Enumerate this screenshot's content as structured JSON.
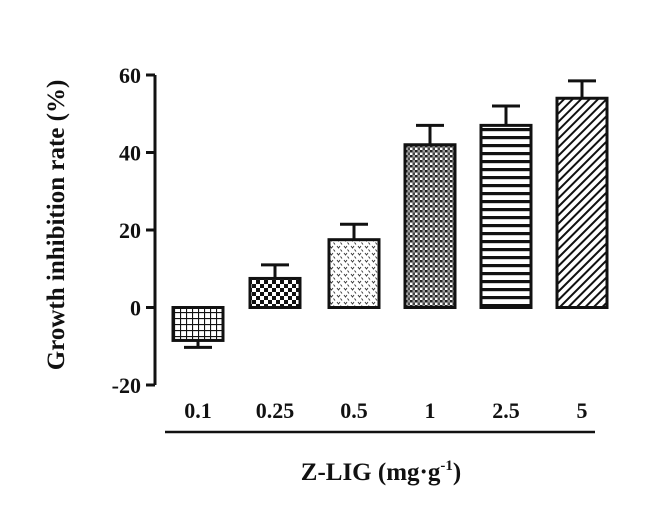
{
  "chart_data": {
    "type": "bar",
    "title": "",
    "ylabel": "Growth inhibition rate (%)",
    "xlabel_main": "Z-LIG (mg·g",
    "xlabel_sup": "-1",
    "xlabel_end": ")",
    "categories": [
      "0.1",
      "0.25",
      "0.5",
      "1",
      "2.5",
      "5"
    ],
    "values": [
      -8.5,
      7.5,
      17.5,
      42,
      47,
      54
    ],
    "errors": [
      1.8,
      3.5,
      4,
      5,
      5,
      4.5
    ],
    "ylim": [
      -20,
      60
    ],
    "yticks": [
      "-20",
      "0",
      "20",
      "40",
      "60"
    ],
    "ytick_values": [
      -20,
      0,
      20,
      40,
      60
    ],
    "patterns": [
      "grid",
      "checker",
      "dots",
      "dense-checker",
      "horizontal-lines",
      "diagonal-lines"
    ],
    "grid": false,
    "legend": "none",
    "bar_fill": "#ffffff",
    "bar_stroke": "#111111"
  }
}
